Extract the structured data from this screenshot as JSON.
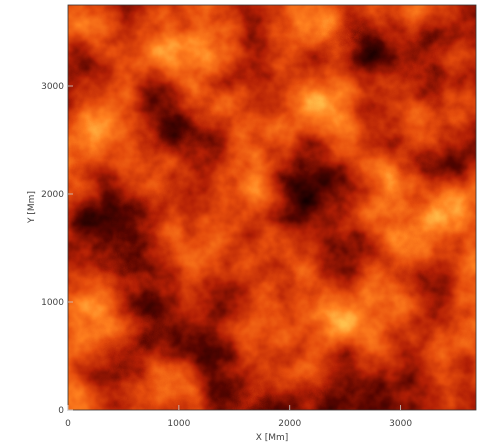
{
  "chart_data": {
    "type": "image",
    "xlabel": "X [Mm]",
    "ylabel": "Y [Mm]",
    "xlim": [
      0,
      3680
    ],
    "ylim": [
      0,
      3750
    ],
    "xticks": [
      0,
      1000,
      2000,
      3000
    ],
    "yticks": [
      0,
      1000,
      2000,
      3000
    ]
  }
}
